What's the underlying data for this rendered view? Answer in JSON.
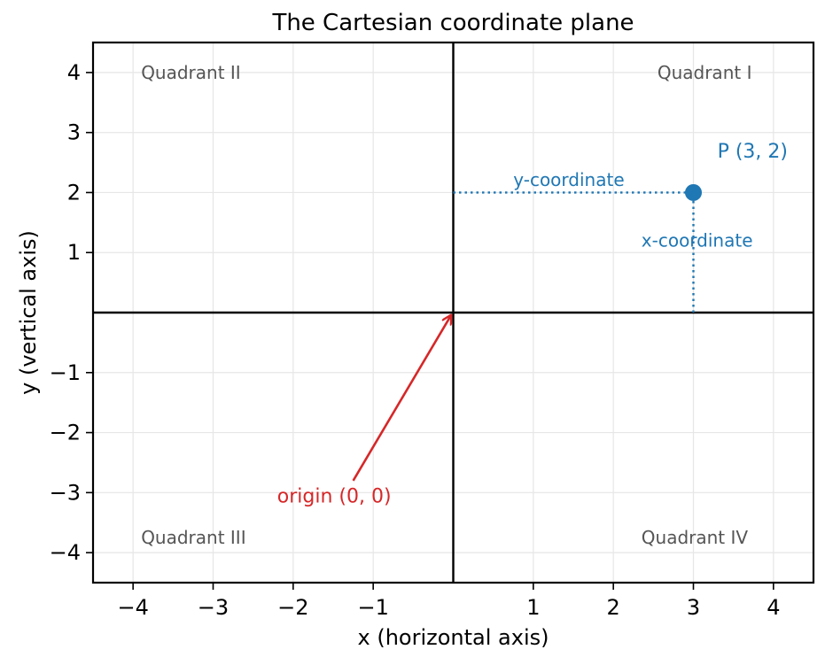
{
  "chart_data": {
    "type": "scatter",
    "title": "The Cartesian coordinate plane",
    "xlabel": "x (horizontal axis)",
    "ylabel": "y (vertical axis)",
    "xlim": [
      -4.5,
      4.5
    ],
    "ylim": [
      -4.5,
      4.5
    ],
    "grid": true,
    "x_ticks": [
      -4,
      -3,
      -2,
      -1,
      1,
      2,
      3,
      4
    ],
    "y_ticks": [
      -4,
      -3,
      -2,
      -1,
      1,
      2,
      3,
      4
    ],
    "x_tick_labels": [
      "−4",
      "−3",
      "−2",
      "−1",
      "1",
      "2",
      "3",
      "4"
    ],
    "y_tick_labels": [
      "−4",
      "−3",
      "−2",
      "−1",
      "1",
      "2",
      "3",
      "4"
    ],
    "quadrants": [
      {
        "label": "Quadrant I",
        "x": 2.55,
        "y": 4.0
      },
      {
        "label": "Quadrant II",
        "x": -3.9,
        "y": 4.0
      },
      {
        "label": "Quadrant III",
        "x": -3.9,
        "y": -3.75
      },
      {
        "label": "Quadrant IV",
        "x": 2.35,
        "y": -3.75
      }
    ],
    "point": {
      "x": 3,
      "y": 2,
      "label": "P (3, 2)",
      "label_x": 3.3,
      "label_y": 2.7
    },
    "y_coordinate_label": {
      "text": "y-coordinate",
      "x": 0.75,
      "y": 2.2
    },
    "x_coordinate_label": {
      "text": "x-coordinate",
      "x": 2.35,
      "y": 1.2
    },
    "origin_annotation": {
      "text": "origin (0, 0)",
      "text_x": -2.2,
      "text_y": -3.05,
      "arrow_from": [
        -1.25,
        -2.8
      ],
      "arrow_to": [
        -0.03,
        -0.05
      ]
    },
    "colors": {
      "point": "#1f77b4",
      "origin": "#d62728",
      "quadrant": "#555555",
      "axes": "#000000",
      "grid": "#e6e6e6"
    }
  }
}
